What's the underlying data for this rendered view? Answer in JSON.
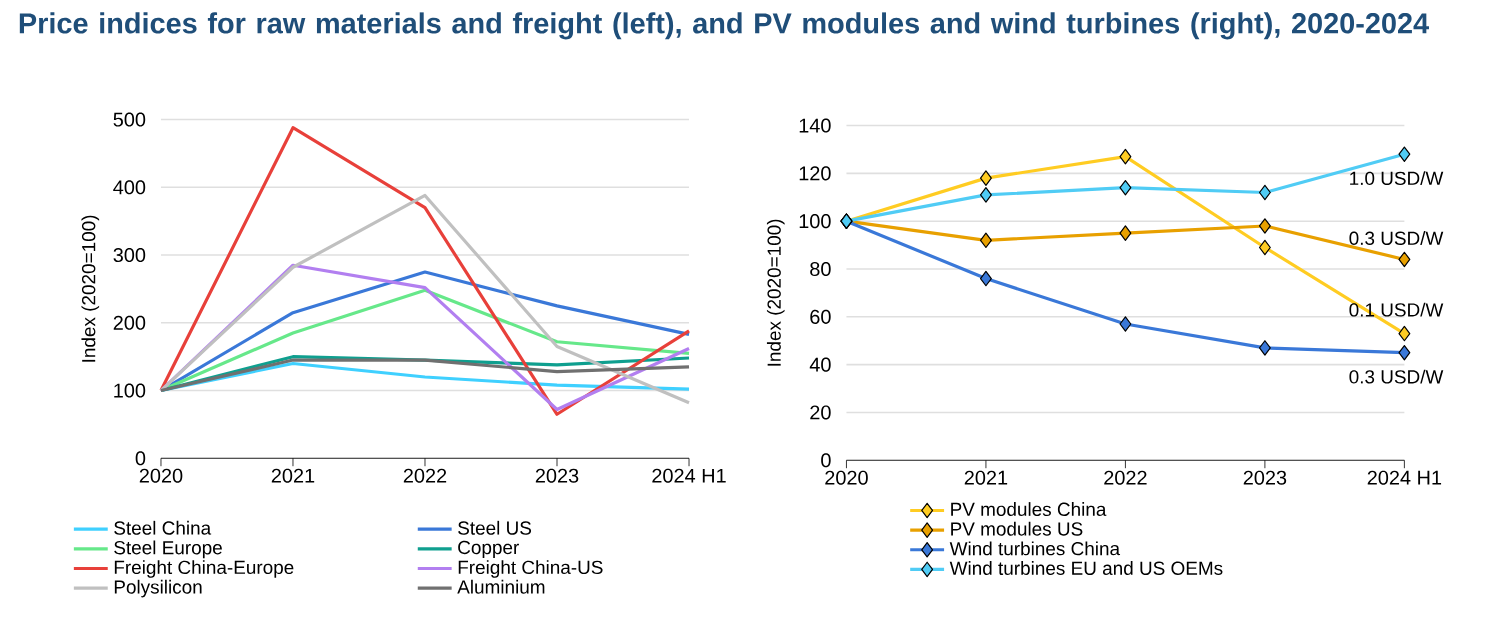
{
  "chart_data": [
    {
      "type": "line",
      "title": "Price indices for raw materials and freight (left), and PV modules and wind turbines (right), 2020-2024",
      "ylabel": "Index (2020=100)",
      "categories": [
        "2020",
        "2021",
        "2022",
        "2023",
        "2024 H1"
      ],
      "ylim": [
        0,
        500
      ],
      "yticks": [
        0,
        100,
        200,
        300,
        400,
        500
      ],
      "grid": "y",
      "legend": "bottom",
      "marker": "none",
      "series": [
        {
          "name": "Steel China",
          "color": "#3fd0ff",
          "values": [
            100,
            140,
            120,
            108,
            102
          ]
        },
        {
          "name": "Steel US",
          "color": "#3a78d8",
          "values": [
            100,
            215,
            275,
            225,
            183
          ]
        },
        {
          "name": "Steel Europe",
          "color": "#66e88a",
          "values": [
            100,
            185,
            248,
            172,
            155
          ]
        },
        {
          "name": "Copper",
          "color": "#0f9f8f",
          "values": [
            100,
            150,
            145,
            138,
            148
          ]
        },
        {
          "name": "Freight China-Europe",
          "color": "#e8403a",
          "values": [
            100,
            488,
            370,
            65,
            188
          ]
        },
        {
          "name": "Freight China-US",
          "color": "#b27ff0",
          "values": [
            100,
            285,
            252,
            72,
            162
          ]
        },
        {
          "name": "Polysilicon",
          "color": "#c0c0c0",
          "values": [
            100,
            282,
            388,
            165,
            82
          ]
        },
        {
          "name": "Aluminium",
          "color": "#707070",
          "values": [
            100,
            145,
            145,
            128,
            135
          ]
        }
      ]
    },
    {
      "type": "line",
      "ylabel": "Index (2020=100)",
      "categories": [
        "2020",
        "2021",
        "2022",
        "2023",
        "2024 H1"
      ],
      "ylim": [
        0,
        140
      ],
      "yticks": [
        0,
        20,
        40,
        60,
        80,
        100,
        120,
        140
      ],
      "grid": "y",
      "legend": "bottom",
      "marker": "diamond",
      "annotations": [
        "1.0 USD/W",
        "0.3 USD/W",
        "0.1 USD/W",
        "0.3 USD/W"
      ],
      "series": [
        {
          "name": "PV modules China",
          "color": "#ffcc22",
          "values": [
            100,
            118,
            127,
            89,
            53
          ]
        },
        {
          "name": "PV modules US",
          "color": "#e8a000",
          "values": [
            100,
            92,
            95,
            98,
            84
          ]
        },
        {
          "name": "Wind turbines China",
          "color": "#3a78d8",
          "values": [
            100,
            76,
            57,
            47,
            45
          ]
        },
        {
          "name": "Wind turbines EU and US OEMs",
          "color": "#50ccf5",
          "values": [
            100,
            111,
            114,
            112,
            128
          ]
        }
      ]
    }
  ]
}
